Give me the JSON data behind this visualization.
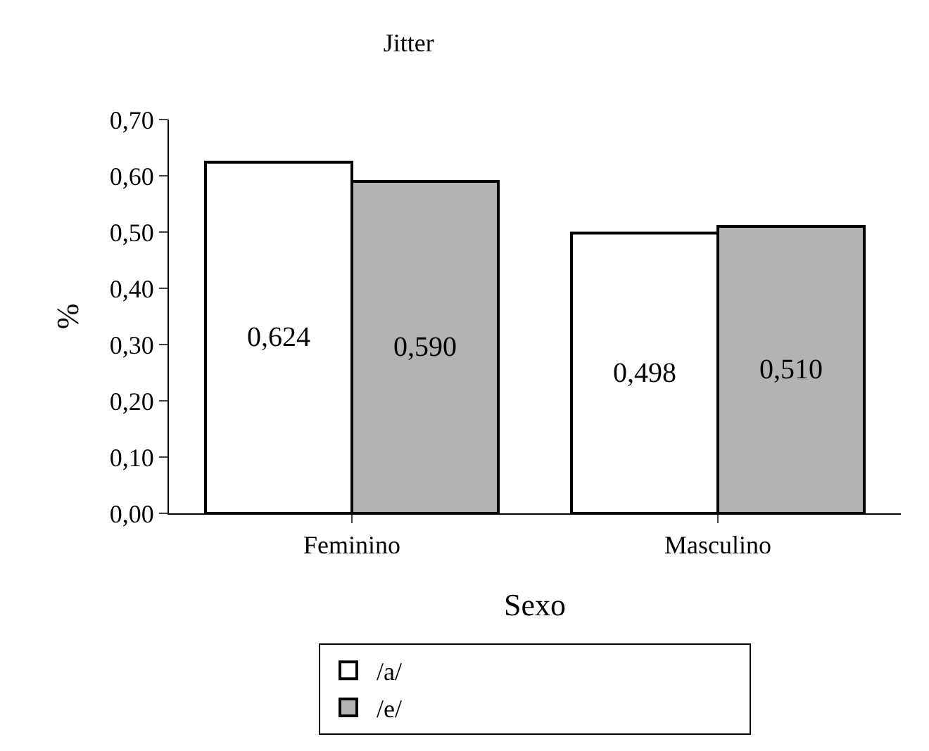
{
  "chart_data": {
    "type": "bar",
    "title": "Jitter",
    "xlabel": "Sexo",
    "ylabel": "%",
    "categories": [
      "Feminino",
      "Masculino"
    ],
    "series": [
      {
        "name": "/a/",
        "color": "#ffffff",
        "values": [
          0.624,
          0.498
        ],
        "value_labels": [
          "0,624",
          "0,498"
        ]
      },
      {
        "name": "/e/",
        "color": "#b3b3b3",
        "values": [
          0.59,
          0.51
        ],
        "value_labels": [
          "0,590",
          "0,510"
        ]
      }
    ],
    "ylim": [
      0,
      0.7
    ],
    "yticks": [
      {
        "value": 0,
        "label": "0,00"
      },
      {
        "value": 0.1,
        "label": "0,10"
      },
      {
        "value": 0.2,
        "label": "0,20"
      },
      {
        "value": 0.3,
        "label": "0,30"
      },
      {
        "value": 0.4,
        "label": "0,40"
      },
      {
        "value": 0.5,
        "label": "0,50"
      },
      {
        "value": 0.6,
        "label": "0,60"
      },
      {
        "value": 0.7,
        "label": "0,70"
      }
    ],
    "grid": false,
    "legend": "bottom"
  }
}
